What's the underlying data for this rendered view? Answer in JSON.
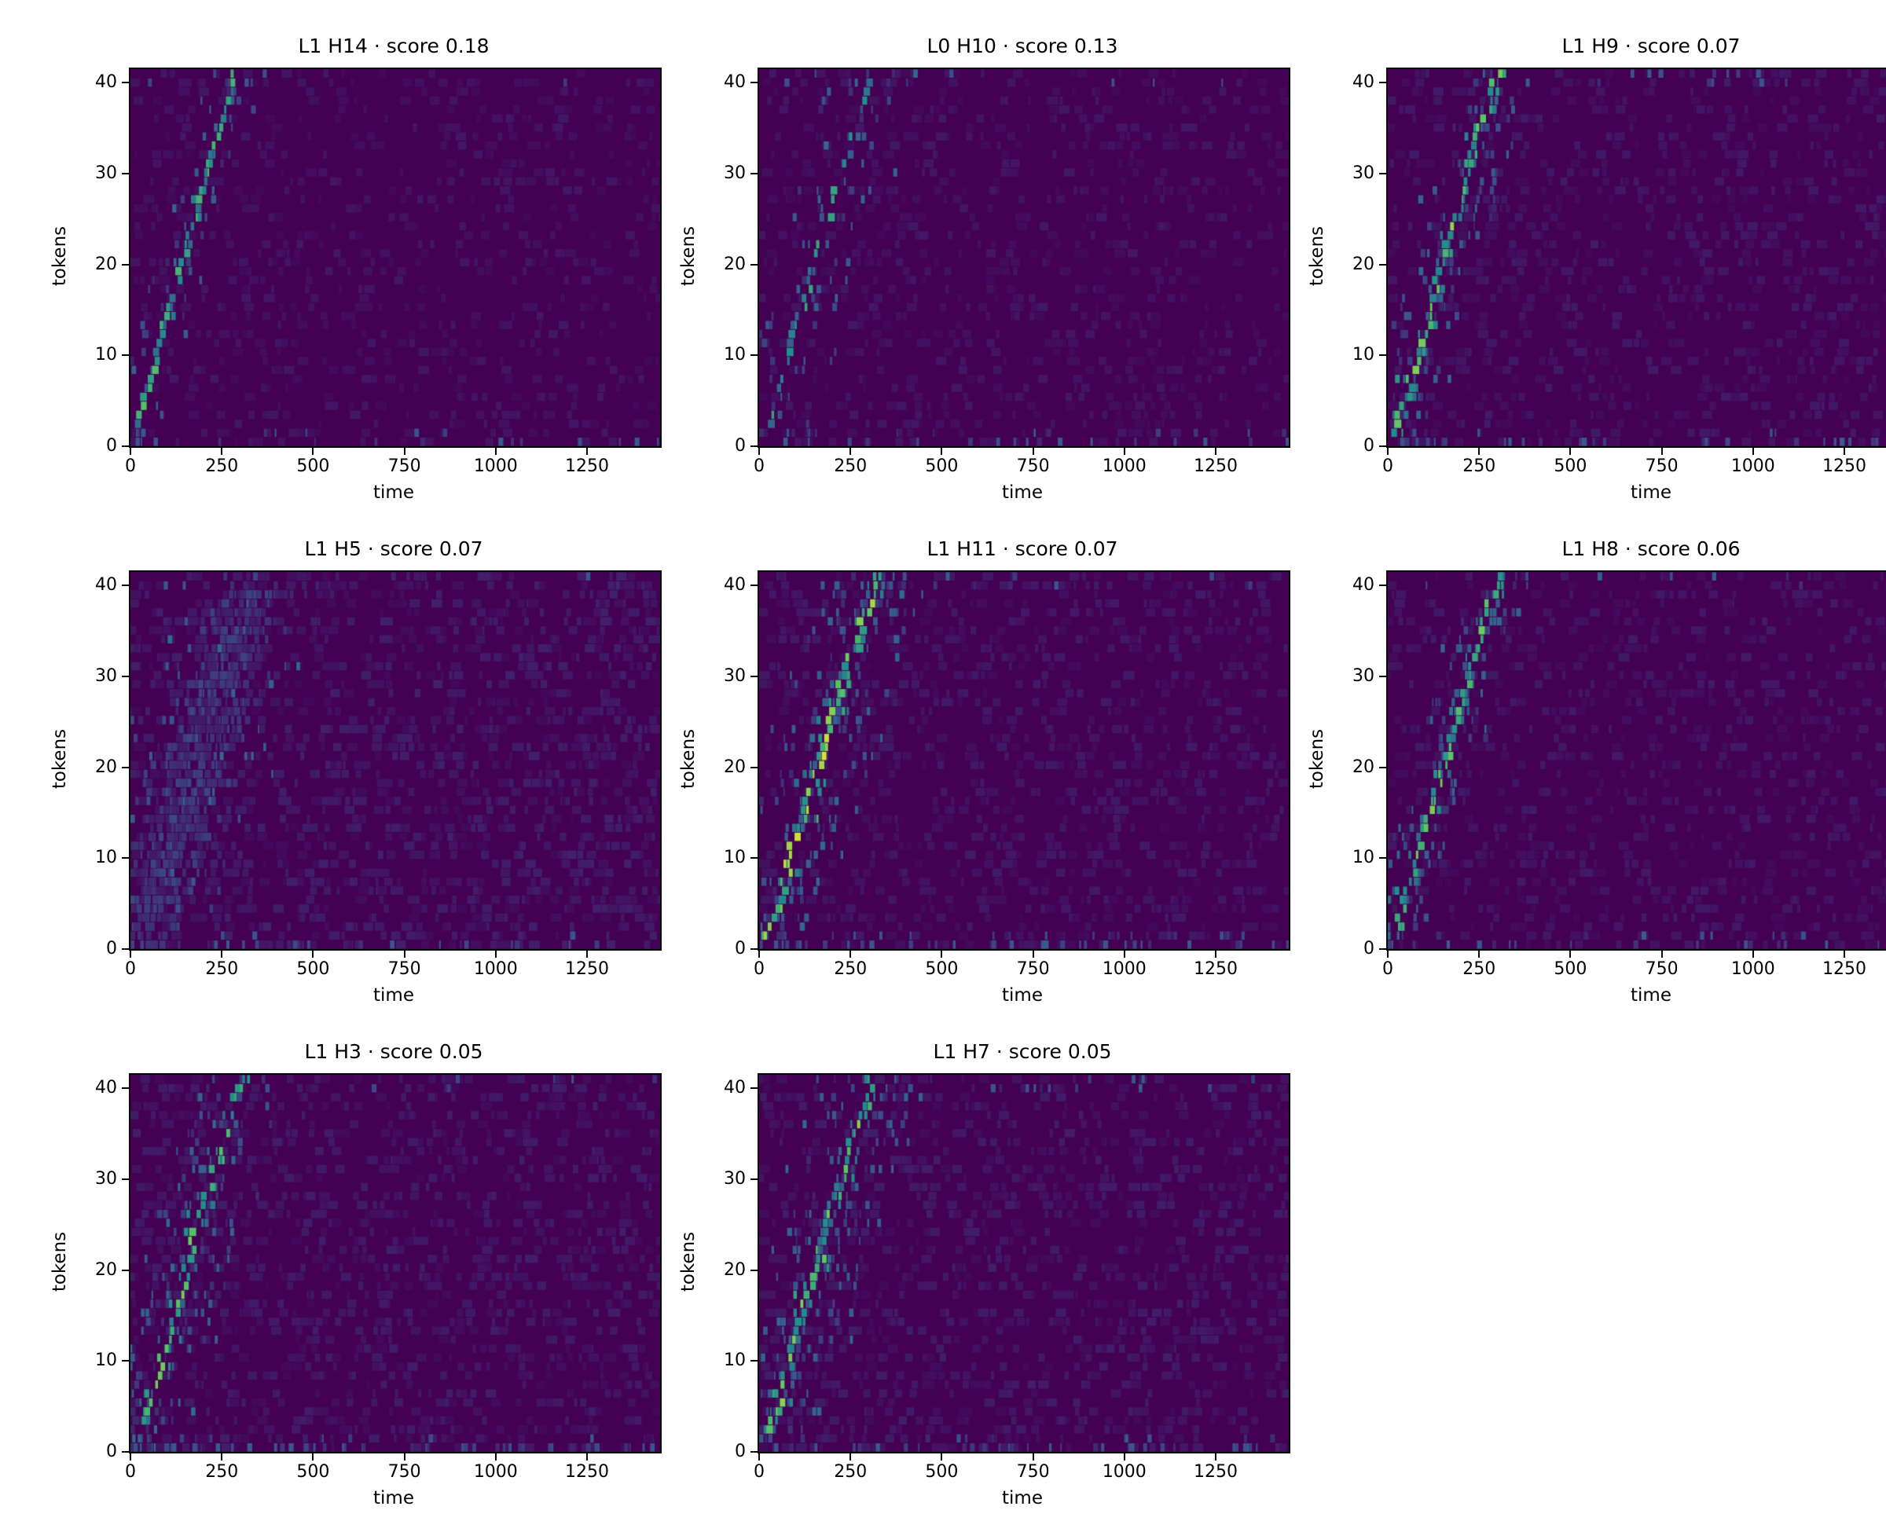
{
  "chart_data": {
    "type": "heatmap",
    "colormap": "viridis",
    "xlabel": "time",
    "ylabel": "tokens",
    "xlim": [
      0,
      1450
    ],
    "ylim": [
      0,
      41.5
    ],
    "xticks": [
      0,
      250,
      500,
      750,
      1000,
      1250
    ],
    "yticks": [
      0,
      10,
      20,
      30,
      40
    ],
    "grid": false,
    "legend": "none",
    "description": "Attention head alignment heatmaps: each panel shows a faint bright diagonal ridge (tokens vs. time) rising from bottom-left (~time 25, token 2) to top (~time 300, token 41) on a dark viridis background.",
    "panels": [
      {
        "title": "L1 H14 · score 0.18",
        "layer": "L1",
        "head": "H14",
        "score": 0.18,
        "pattern": {
          "kind": "line",
          "seed": 101,
          "t0": 22,
          "tok0": 2,
          "t1": 285,
          "tok1": 41,
          "jitter": 16,
          "vmin": 0.35,
          "vmax": 0.75,
          "rowDensity": 0.95,
          "extraDash": 0.3,
          "speckle": 60,
          "speckleSpread": 55,
          "edgeNoise": 22,
          "bgNoise": 700,
          "bgAmp": 0.05
        }
      },
      {
        "title": "L0 H10 · score 0.13",
        "layer": "L0",
        "head": "H10",
        "score": 0.13,
        "pattern": {
          "kind": "line",
          "seed": 202,
          "t0": 28,
          "tok0": 2,
          "t1": 305,
          "tok1": 41,
          "jitter": 22,
          "vmin": 0.3,
          "vmax": 0.6,
          "rowDensity": 0.6,
          "extraDash": 0.25,
          "speckle": 90,
          "speckleSpread": 85,
          "edgeNoise": 40,
          "bgNoise": 800,
          "bgAmp": 0.05
        }
      },
      {
        "title": "L1 H9 · score 0.07",
        "layer": "L1",
        "head": "H9",
        "score": 0.07,
        "pattern": {
          "kind": "line",
          "seed": 303,
          "t0": 22,
          "tok0": 1,
          "t1": 300,
          "tok1": 41,
          "jitter": 26,
          "vmin": 0.4,
          "vmax": 0.85,
          "rowDensity": 1.0,
          "extraDash": 0.6,
          "speckle": 140,
          "speckleSpread": 70,
          "edgeNoise": 40,
          "bgNoise": 900,
          "bgAmp": 0.06
        }
      },
      {
        "title": "L1 H5 · score 0.07",
        "layer": "L1",
        "head": "H5",
        "score": 0.07,
        "pattern": {
          "kind": "diffuse",
          "seed": 404,
          "t0": 20,
          "tok0": 0,
          "t1": 330,
          "tok1": 40,
          "count": 650,
          "spread": 95,
          "vmin": 0.07,
          "vmax": 0.22,
          "speckle": 120,
          "speckleSpread": 130,
          "edgeNoise": 30,
          "bgNoise": 1400,
          "bgAmp": 0.08
        }
      },
      {
        "title": "L1 H11 · score 0.07",
        "layer": "L1",
        "head": "H11",
        "score": 0.07,
        "pattern": {
          "kind": "line",
          "seed": 505,
          "t0": 22,
          "tok0": 1,
          "t1": 320,
          "tok1": 41,
          "jitter": 30,
          "vmin": 0.45,
          "vmax": 0.95,
          "rowDensity": 1.0,
          "extraDash": 0.8,
          "speckle": 200,
          "speckleSpread": 80,
          "edgeNoise": 60,
          "bgNoise": 1000,
          "bgAmp": 0.06
        }
      },
      {
        "title": "L1 H8 · score 0.06",
        "layer": "L1",
        "head": "H8",
        "score": 0.06,
        "pattern": {
          "kind": "line",
          "seed": 606,
          "t0": 28,
          "tok0": 2,
          "t1": 300,
          "tok1": 41,
          "jitter": 22,
          "vmin": 0.4,
          "vmax": 0.8,
          "rowDensity": 0.95,
          "extraDash": 0.5,
          "speckle": 130,
          "speckleSpread": 60,
          "edgeNoise": 35,
          "bgNoise": 900,
          "bgAmp": 0.06
        }
      },
      {
        "title": "L1 H3 · score 0.05",
        "layer": "L1",
        "head": "H3",
        "score": 0.05,
        "pattern": {
          "kind": "line",
          "seed": 707,
          "t0": 35,
          "tok0": 3,
          "t1": 300,
          "tok1": 41,
          "jitter": 28,
          "vmin": 0.4,
          "vmax": 0.8,
          "rowDensity": 0.95,
          "extraDash": 0.6,
          "speckle": 170,
          "speckleSpread": 80,
          "edgeNoise": 60,
          "bgNoise": 1200,
          "bgAmp": 0.07
        }
      },
      {
        "title": "L1 H7 · score 0.05",
        "layer": "L1",
        "head": "H7",
        "score": 0.05,
        "pattern": {
          "kind": "line",
          "seed": 808,
          "t0": 28,
          "tok0": 2,
          "t1": 310,
          "tok1": 41,
          "jitter": 30,
          "vmin": 0.4,
          "vmax": 0.85,
          "rowDensity": 1.0,
          "extraDash": 0.7,
          "speckle": 190,
          "speckleSpread": 85,
          "edgeNoise": 60,
          "bgNoise": 1100,
          "bgAmp": 0.07
        }
      }
    ]
  }
}
